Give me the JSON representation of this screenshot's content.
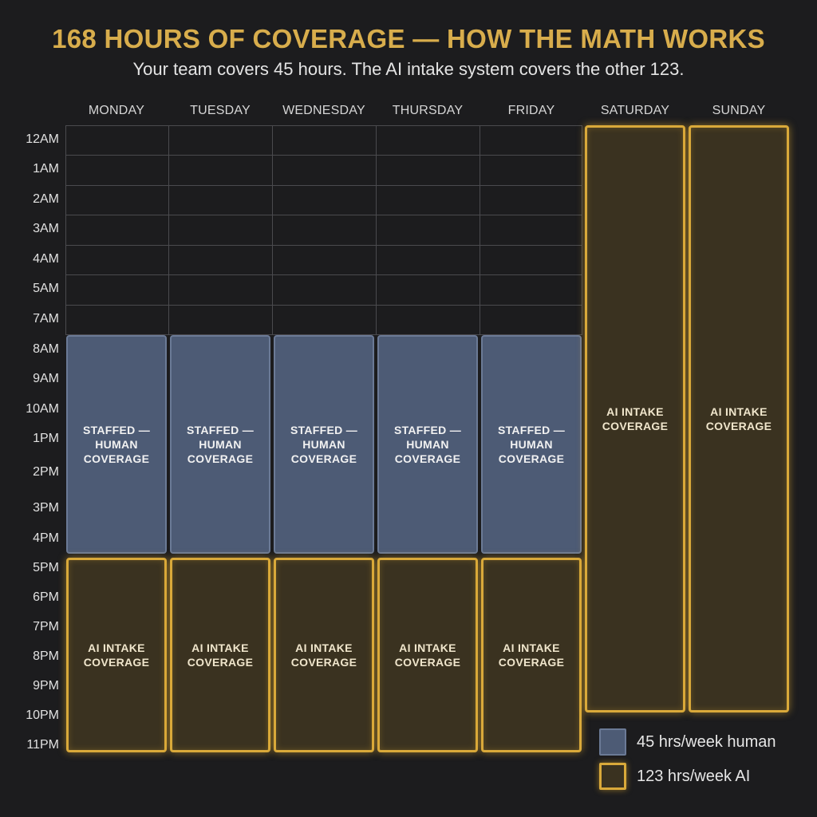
{
  "title": "168 HOURS OF COVERAGE — HOW THE MATH WORKS",
  "subtitle": "Your team covers 45 hours. The AI intake system covers the other 123.",
  "days": [
    "MONDAY",
    "TUESDAY",
    "WEDNESDAY",
    "THURSDAY",
    "FRIDAY",
    "SATURDAY",
    "SUNDAY"
  ],
  "time_labels": [
    "12AM",
    "1AM",
    "2AM",
    "3AM",
    "4AM",
    "5AM",
    "7AM",
    "8AM",
    "9AM",
    "10AM",
    "1PM",
    "2PM",
    "3PM",
    "4PM",
    "5PM",
    "6PM",
    "7PM",
    "8PM",
    "9PM",
    "10PM",
    "11PM"
  ],
  "blocks": {
    "human_label": "STAFFED — HUMAN COVERAGE",
    "ai_label": "AI INTAKE COVERAGE"
  },
  "legend": {
    "human": "45 hrs/week human",
    "ai": "123 hrs/week AI"
  },
  "colors": {
    "title": "#d8ad4c",
    "human_fill": "#4d5b75",
    "ai_border": "#d9a93a",
    "background": "#1c1c1e"
  }
}
